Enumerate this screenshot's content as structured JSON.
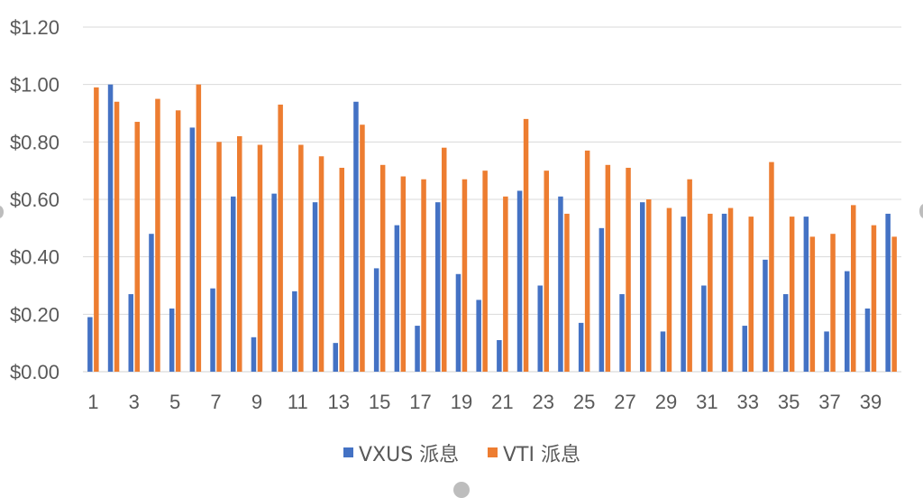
{
  "chart_data": {
    "type": "bar",
    "title": "",
    "xlabel": "",
    "ylabel": "",
    "ylim": [
      0,
      1.2
    ],
    "y_ticks": [
      "$0.00",
      "$0.20",
      "$0.40",
      "$0.60",
      "$0.80",
      "$1.00",
      "$1.20"
    ],
    "y_tick_values": [
      0,
      0.2,
      0.4,
      0.6,
      0.8,
      1.0,
      1.2
    ],
    "grid": true,
    "legend_position": "bottom",
    "categories": [
      "1",
      "2",
      "3",
      "4",
      "5",
      "6",
      "7",
      "8",
      "9",
      "10",
      "11",
      "12",
      "13",
      "14",
      "15",
      "16",
      "17",
      "18",
      "19",
      "20",
      "21",
      "22",
      "23",
      "24",
      "25",
      "26",
      "27",
      "28",
      "29",
      "30",
      "31",
      "32",
      "33",
      "34",
      "35",
      "36",
      "37",
      "38",
      "39",
      "40"
    ],
    "x_tick_labels": [
      "1",
      "3",
      "5",
      "7",
      "9",
      "11",
      "13",
      "15",
      "17",
      "19",
      "21",
      "23",
      "25",
      "27",
      "29",
      "31",
      "33",
      "35",
      "37",
      "39"
    ],
    "series": [
      {
        "name": "VXUS 派息",
        "color": "#4472C4",
        "values": [
          0.19,
          1.0,
          0.27,
          0.48,
          0.22,
          0.85,
          0.29,
          0.61,
          0.12,
          0.62,
          0.28,
          0.59,
          0.1,
          0.94,
          0.36,
          0.51,
          0.16,
          0.59,
          0.34,
          0.25,
          0.11,
          0.63,
          0.3,
          0.61,
          0.17,
          0.5,
          0.27,
          0.59,
          0.14,
          0.54,
          0.3,
          0.55,
          0.16,
          0.39,
          0.27,
          0.54,
          0.14,
          0.35,
          0.22,
          0.55
        ]
      },
      {
        "name": "VTI 派息",
        "color": "#ED7D31",
        "values": [
          0.99,
          0.94,
          0.87,
          0.95,
          0.91,
          1.0,
          0.8,
          0.82,
          0.79,
          0.93,
          0.79,
          0.75,
          0.71,
          0.86,
          0.72,
          0.68,
          0.67,
          0.78,
          0.67,
          0.7,
          0.61,
          0.88,
          0.7,
          0.55,
          0.77,
          0.72,
          0.71,
          0.6,
          0.57,
          0.67,
          0.55,
          0.57,
          0.54,
          0.73,
          0.54,
          0.47,
          0.48,
          0.58,
          0.51,
          0.47
        ]
      }
    ]
  }
}
